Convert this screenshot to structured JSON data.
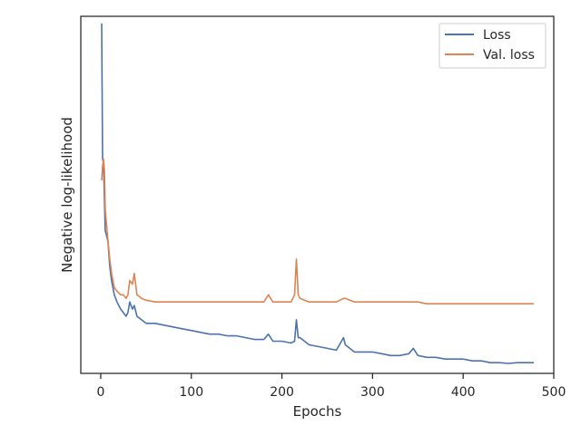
{
  "chart_data": {
    "type": "line",
    "xlabel": "Epochs",
    "ylabel": "Negative log-likelihood",
    "xlim": [
      -22,
      500
    ],
    "ylim": [
      0,
      100
    ],
    "xticks": [
      0,
      100,
      200,
      300,
      400,
      500
    ],
    "yticks_shown": false,
    "grid": false,
    "legend": "top-right",
    "series": [
      {
        "name": "Loss",
        "color": "#4c72b0",
        "points": [
          [
            1,
            98
          ],
          [
            2,
            60
          ],
          [
            3,
            59
          ],
          [
            5,
            40
          ],
          [
            8,
            37
          ],
          [
            10,
            30
          ],
          [
            12,
            26
          ],
          [
            15,
            22
          ],
          [
            18,
            20
          ],
          [
            22,
            18
          ],
          [
            25,
            17
          ],
          [
            28,
            16
          ],
          [
            30,
            17
          ],
          [
            32,
            20
          ],
          [
            35,
            18
          ],
          [
            37,
            19
          ],
          [
            40,
            16
          ],
          [
            45,
            15
          ],
          [
            50,
            14
          ],
          [
            60,
            14
          ],
          [
            70,
            13.5
          ],
          [
            80,
            13
          ],
          [
            90,
            12.5
          ],
          [
            100,
            12
          ],
          [
            110,
            11.5
          ],
          [
            120,
            11
          ],
          [
            130,
            11
          ],
          [
            140,
            10.5
          ],
          [
            150,
            10.5
          ],
          [
            160,
            10
          ],
          [
            170,
            9.5
          ],
          [
            180,
            9.5
          ],
          [
            185,
            11
          ],
          [
            190,
            9
          ],
          [
            200,
            9
          ],
          [
            210,
            8.5
          ],
          [
            214,
            9
          ],
          [
            216,
            15
          ],
          [
            218,
            10
          ],
          [
            220,
            10
          ],
          [
            230,
            8
          ],
          [
            240,
            7.5
          ],
          [
            250,
            7
          ],
          [
            260,
            6.5
          ],
          [
            268,
            10
          ],
          [
            270,
            8
          ],
          [
            280,
            6
          ],
          [
            290,
            6
          ],
          [
            300,
            6
          ],
          [
            310,
            5.5
          ],
          [
            320,
            5
          ],
          [
            330,
            5
          ],
          [
            340,
            5.5
          ],
          [
            345,
            7
          ],
          [
            350,
            5
          ],
          [
            360,
            4.5
          ],
          [
            370,
            4.5
          ],
          [
            380,
            4
          ],
          [
            390,
            4
          ],
          [
            400,
            4
          ],
          [
            410,
            3.5
          ],
          [
            420,
            3.5
          ],
          [
            430,
            3
          ],
          [
            440,
            3
          ],
          [
            450,
            2.8
          ],
          [
            460,
            3
          ],
          [
            470,
            3
          ],
          [
            478,
            3
          ]
        ]
      },
      {
        "name": "Val. loss",
        "color": "#dd8452",
        "points": [
          [
            1,
            54
          ],
          [
            2,
            58
          ],
          [
            3,
            60
          ],
          [
            4,
            57
          ],
          [
            5,
            46
          ],
          [
            7,
            40
          ],
          [
            10,
            32
          ],
          [
            12,
            28
          ],
          [
            15,
            24
          ],
          [
            18,
            23
          ],
          [
            22,
            22
          ],
          [
            25,
            22
          ],
          [
            28,
            21
          ],
          [
            30,
            22
          ],
          [
            32,
            26
          ],
          [
            35,
            25
          ],
          [
            37,
            28
          ],
          [
            40,
            22
          ],
          [
            45,
            21
          ],
          [
            50,
            20.5
          ],
          [
            60,
            20
          ],
          [
            70,
            20
          ],
          [
            80,
            20
          ],
          [
            90,
            20
          ],
          [
            100,
            20
          ],
          [
            110,
            20
          ],
          [
            120,
            20
          ],
          [
            130,
            20
          ],
          [
            140,
            20
          ],
          [
            150,
            20
          ],
          [
            160,
            20
          ],
          [
            170,
            20
          ],
          [
            180,
            20
          ],
          [
            185,
            22
          ],
          [
            190,
            20
          ],
          [
            200,
            20
          ],
          [
            210,
            20
          ],
          [
            214,
            22
          ],
          [
            216,
            32
          ],
          [
            218,
            22
          ],
          [
            220,
            21
          ],
          [
            230,
            20
          ],
          [
            240,
            20
          ],
          [
            250,
            20
          ],
          [
            260,
            20
          ],
          [
            268,
            21
          ],
          [
            270,
            21
          ],
          [
            280,
            20
          ],
          [
            290,
            20
          ],
          [
            300,
            20
          ],
          [
            310,
            20
          ],
          [
            320,
            20
          ],
          [
            330,
            20
          ],
          [
            340,
            20
          ],
          [
            350,
            20
          ],
          [
            360,
            19.5
          ],
          [
            370,
            19.5
          ],
          [
            380,
            19.5
          ],
          [
            390,
            19.5
          ],
          [
            400,
            19.5
          ],
          [
            410,
            19.5
          ],
          [
            420,
            19.5
          ],
          [
            430,
            19.5
          ],
          [
            440,
            19.5
          ],
          [
            450,
            19.5
          ],
          [
            460,
            19.5
          ],
          [
            470,
            19.5
          ],
          [
            478,
            19.5
          ]
        ]
      }
    ]
  }
}
